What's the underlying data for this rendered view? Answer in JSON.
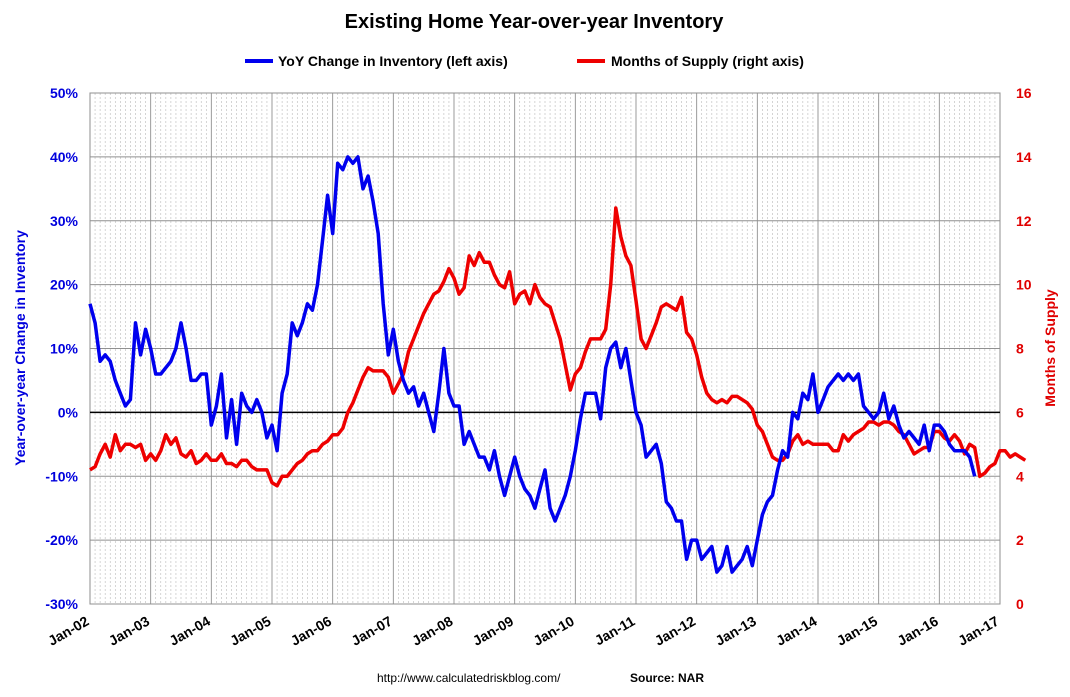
{
  "chart_data": {
    "type": "line",
    "title": "Existing Home Year-over-year Inventory",
    "ylabel_left": "Year-over-year Change in Inventory",
    "ylabel_right": "Months of Supply",
    "left_ticks": [
      "-30%",
      "-20%",
      "-10%",
      "0%",
      "10%",
      "20%",
      "30%",
      "40%",
      "50%"
    ],
    "right_ticks": [
      "0",
      "2",
      "4",
      "6",
      "8",
      "10",
      "12",
      "14",
      "16"
    ],
    "x_ticks": [
      "Jan-02",
      "Jan-03",
      "Jan-04",
      "Jan-05",
      "Jan-06",
      "Jan-07",
      "Jan-08",
      "Jan-09",
      "Jan-10",
      "Jan-11",
      "Jan-12",
      "Jan-13",
      "Jan-14",
      "Jan-15",
      "Jan-16",
      "Jan-17"
    ],
    "ylim_left": [
      -30,
      50
    ],
    "ylim_right": [
      0,
      16
    ],
    "x_start": "Jan-02",
    "x_end": "Jan-17",
    "grid": true,
    "legend_position": "top",
    "series": [
      {
        "name": "YoY Change in Inventory (left axis)",
        "axis": "left",
        "color": "#0000ee",
        "values": [
          17,
          14,
          8,
          9,
          8,
          5,
          3,
          1,
          2,
          14,
          9,
          13,
          10,
          6,
          6,
          7,
          8,
          10,
          14,
          10,
          5,
          5,
          6,
          6,
          -2,
          1,
          6,
          -4,
          2,
          -5,
          3,
          1,
          0,
          2,
          0,
          -4,
          -2,
          -6,
          3,
          6,
          14,
          12,
          14,
          17,
          16,
          20,
          27,
          34,
          28,
          39,
          38,
          40,
          39,
          40,
          35,
          37,
          33,
          28,
          17,
          9,
          13,
          8,
          5,
          3,
          4,
          1,
          3,
          0,
          -3,
          3,
          10,
          3,
          1,
          1,
          -5,
          -3,
          -5,
          -7,
          -7,
          -9,
          -6,
          -10,
          -13,
          -10,
          -7,
          -10,
          -12,
          -13,
          -15,
          -12,
          -9,
          -15,
          -17,
          -15,
          -13,
          -10,
          -6,
          -1,
          3,
          3,
          3,
          -1,
          7,
          10,
          11,
          7,
          10,
          5,
          0,
          -2,
          -7,
          -6,
          -5,
          -8,
          -14,
          -15,
          -17,
          -17,
          -23,
          -20,
          -20,
          -23,
          -22,
          -21,
          -25,
          -24,
          -21,
          -25,
          -24,
          -23,
          -21,
          -24,
          -20,
          -16,
          -14,
          -13,
          -9,
          -6,
          -7,
          0,
          -1,
          3,
          2,
          6,
          0,
          2,
          4,
          5,
          6,
          5,
          6,
          5,
          6,
          1,
          0,
          -1,
          0,
          3,
          -1,
          1,
          -2,
          -4,
          -3,
          -4,
          -5,
          -2,
          -6,
          -2,
          -2,
          -3,
          -5,
          -6,
          -6,
          -6,
          -7,
          -10
        ]
      },
      {
        "name": "Months of Supply (right axis)",
        "axis": "right",
        "color": "#ee0000",
        "values": [
          4.2,
          4.3,
          4.7,
          5.0,
          4.6,
          5.3,
          4.8,
          5.0,
          5.0,
          4.9,
          5.0,
          4.5,
          4.7,
          4.5,
          4.8,
          5.3,
          5.0,
          5.2,
          4.7,
          4.6,
          4.8,
          4.4,
          4.5,
          4.7,
          4.5,
          4.5,
          4.7,
          4.4,
          4.4,
          4.3,
          4.5,
          4.5,
          4.3,
          4.2,
          4.2,
          4.2,
          3.8,
          3.7,
          4.0,
          4.0,
          4.2,
          4.4,
          4.5,
          4.7,
          4.8,
          4.8,
          5.0,
          5.1,
          5.3,
          5.3,
          5.5,
          6.0,
          6.3,
          6.7,
          7.1,
          7.4,
          7.3,
          7.3,
          7.3,
          7.1,
          6.6,
          6.9,
          7.2,
          7.9,
          8.3,
          8.7,
          9.1,
          9.4,
          9.7,
          9.8,
          10.1,
          10.5,
          10.2,
          9.7,
          9.9,
          10.9,
          10.6,
          11.0,
          10.7,
          10.7,
          10.3,
          10.0,
          9.9,
          10.4,
          9.4,
          9.7,
          9.8,
          9.4,
          10.0,
          9.6,
          9.4,
          9.3,
          8.8,
          8.3,
          7.5,
          6.7,
          7.2,
          7.4,
          7.9,
          8.3,
          8.3,
          8.3,
          8.6,
          10.0,
          12.4,
          11.5,
          10.9,
          10.6,
          9.5,
          8.3,
          8.0,
          8.4,
          8.8,
          9.3,
          9.4,
          9.3,
          9.2,
          9.6,
          8.5,
          8.3,
          7.8,
          7.1,
          6.6,
          6.4,
          6.3,
          6.4,
          6.3,
          6.5,
          6.5,
          6.4,
          6.3,
          6.1,
          5.6,
          5.4,
          5.0,
          4.6,
          4.5,
          4.5,
          4.7,
          5.1,
          5.3,
          5.0,
          5.1,
          5.0,
          5.0,
          5.0,
          5.0,
          4.8,
          4.8,
          5.3,
          5.1,
          5.3,
          5.4,
          5.5,
          5.7,
          5.7,
          5.6,
          5.7,
          5.7,
          5.6,
          5.4,
          5.3,
          5.0,
          4.7,
          4.8,
          4.9,
          4.9,
          5.4,
          5.4,
          5.2,
          5.1,
          5.3,
          5.1,
          4.7,
          5.0,
          4.9,
          4.0,
          4.1,
          4.3,
          4.4,
          4.8,
          4.8,
          4.6,
          4.7,
          4.6,
          4.5
        ]
      }
    ]
  },
  "footer": {
    "url": "http://www.calculatedriskblog.com/",
    "source": "Source: NAR"
  },
  "colors": {
    "left_axis": "#0000dd",
    "right_axis": "#e00000",
    "grid": "#a0a0a0"
  }
}
